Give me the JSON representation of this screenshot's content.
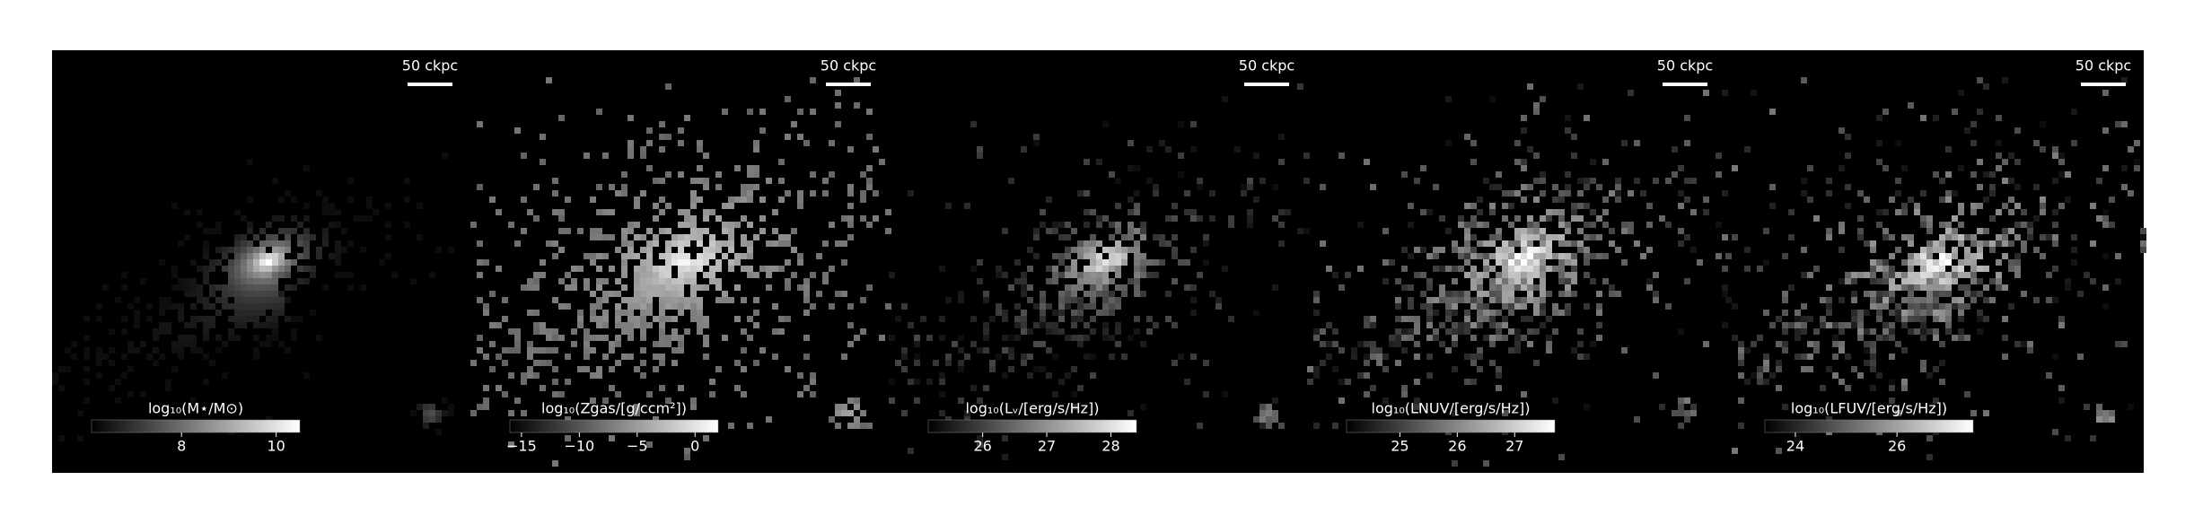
{
  "chart_data": [
    {
      "type": "image",
      "scalebar_label": "50 ckpc",
      "colorbar": {
        "label": "log₁₀(M⋆/M⊙)",
        "xlim": [
          6.1,
          10.5
        ],
        "xticks": [
          8,
          10
        ]
      }
    },
    {
      "type": "image",
      "scalebar_label": "50 ckpc",
      "colorbar": {
        "label": "log₁₀(Zgas/[g/ccm²])",
        "xlim": [
          -16,
          2
        ],
        "xticks": [
          {
            "value": -15,
            "label": "−15"
          },
          {
            "value": -10,
            "label": "−10"
          },
          {
            "value": -5,
            "label": "−5"
          },
          0
        ]
      }
    },
    {
      "type": "image",
      "scalebar_label": "50 ckpc",
      "colorbar": {
        "label": "log₁₀(Lᵥ/[erg/s/Hz])",
        "xlim": [
          25.15,
          28.4
        ],
        "xticks": [
          26,
          27,
          28
        ]
      }
    },
    {
      "type": "image",
      "scalebar_label": "50 ckpc",
      "colorbar": {
        "label": "log₁₀(LNUV/[erg/s/Hz])",
        "xlim": [
          24.07,
          27.7
        ],
        "xticks": [
          25,
          26,
          27
        ]
      }
    },
    {
      "type": "image",
      "scalebar_label": "50 ckpc",
      "colorbar": {
        "label": "log₁₀(LFUV/[erg/s/Hz])",
        "xlim": [
          23.4,
          27.5
        ],
        "xticks": [
          24,
          26
        ]
      }
    }
  ]
}
